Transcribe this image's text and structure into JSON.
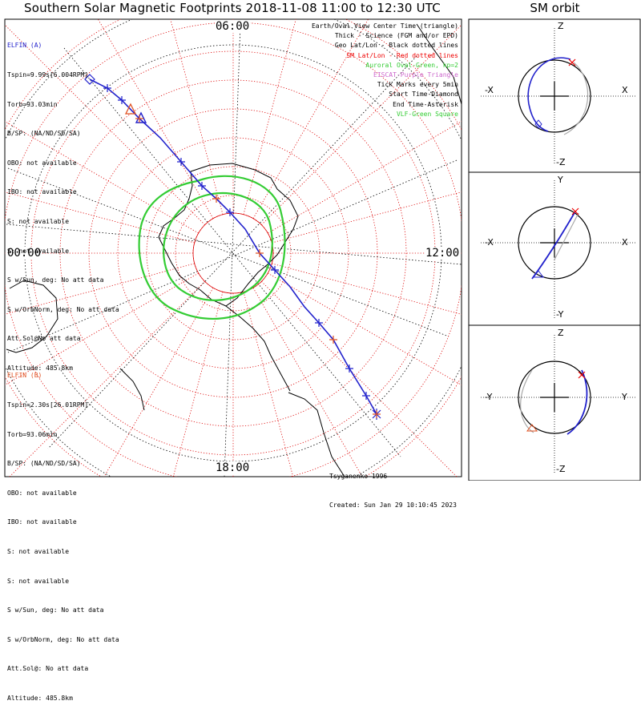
{
  "title": "Southern Solar Magnetic Footprints 2018-11-08 11:00 to 12:30 UTC",
  "orbit_title": "SM orbit",
  "hour_labels": {
    "top": "06:00",
    "left": "00:00",
    "right": "12:00",
    "bottom": "18:00"
  },
  "sat_a": {
    "name": "ELFIN (A)",
    "color": "#2222cc",
    "lines": [
      "Tspin=9.99s[6.004RPM]",
      "Torb=93.03min",
      "B/SP: (NA/ND/SD/SA)",
      "OBO: not available",
      "IBO: not available",
      "S: not available",
      "S: not available",
      "S w/Sun, deg: No att data",
      "S w/OrbNorm, deg: No att data",
      "Att.Sol@No att data",
      "Altitude: 485.8km"
    ]
  },
  "sat_b": {
    "name": "ELFIN (B)",
    "color": "#e05020",
    "lines": [
      "Tspin=2.30s[26.01RPM]",
      "Torb=93.06min",
      "B/SP: (NA/ND/SD/SA)",
      "OBO: not available",
      "IBO: not available",
      "S: not available",
      "S: not available",
      "S w/Sun, deg: No att data",
      "S w/OrbNorm, deg: No att data",
      "Att.Sol@: No att data",
      "Altitude: 485.8km"
    ]
  },
  "legend": [
    {
      "text": "Earth/Oval View Center Time (triangle)",
      "color": "#000000"
    },
    {
      "text": "Thick - Science (FGM and/or EPD)",
      "color": "#000000"
    },
    {
      "text": "Geo Lat/Lon - Black dotted lines",
      "color": "#000000"
    },
    {
      "text": "SM Lat/Lon - Red dotted lines",
      "color": "#ee0000"
    },
    {
      "text": "Auroral Oval-Green, kp=2",
      "color": "#33cc33"
    },
    {
      "text": "EISCAT-Purple Triangle",
      "color": "#cc66cc"
    },
    {
      "text": "Tick Marks every 5min",
      "color": "#000000"
    },
    {
      "text": "Start Time-Diamond",
      "color": "#000000"
    },
    {
      "text": "End Time-Asterisk",
      "color": "#000000"
    },
    {
      "text": "VLF-Green Square",
      "color": "#33cc33"
    }
  ],
  "credits": [
    "Tsyganenko-1996",
    "Created: Sun Jan 29 10:10:45 2023"
  ],
  "orbit_panels": [
    {
      "top": "Z",
      "bottom": "-Z",
      "left": "-X",
      "right": "X"
    },
    {
      "top": "Y",
      "bottom": "-Y",
      "left": "-X",
      "right": "X"
    },
    {
      "top": "Z",
      "bottom": "-Z",
      "left": "-Y",
      "right": "Y"
    }
  ]
}
